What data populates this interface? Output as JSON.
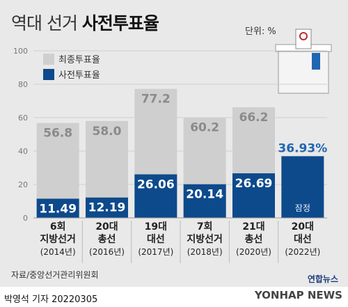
{
  "header": {
    "title_light": "역대 선거",
    "title_bold": "사전투표율",
    "unit": "단위: %"
  },
  "source": "자료/중앙선거관리위원회",
  "byline": "박영석 기자  20220305",
  "logo": {
    "brand": "YONHAP NEWS",
    "small": "연합뉴스"
  },
  "colors": {
    "total_bar": "#cfcfcf",
    "early_bar": "#0d4a8c",
    "highlight_label": "#1f66b3",
    "background": "#e9e9e9"
  },
  "chart_data": {
    "type": "bar",
    "title": "역대 선거 사전투표율",
    "ylabel": "",
    "ylim": [
      0,
      100
    ],
    "yticks": [
      0,
      20,
      40,
      60,
      80,
      100
    ],
    "grid": true,
    "legend_position": "top-left",
    "categories": [
      [
        "6회",
        "지방선거",
        "(2014년)"
      ],
      [
        "20대",
        "총선",
        "(2016년)"
      ],
      [
        "19대",
        "대선",
        "(2017년)"
      ],
      [
        "7회",
        "지방선거",
        "(2018년)"
      ],
      [
        "21대",
        "총선",
        "(2020년)"
      ],
      [
        "20대",
        "대선",
        "(2022년)"
      ]
    ],
    "series": [
      {
        "name": "최종투표율",
        "values": [
          56.8,
          58.0,
          77.2,
          60.2,
          66.2,
          null
        ],
        "labels": [
          "56.8",
          "58.0",
          "77.2",
          "60.2",
          "66.2",
          ""
        ]
      },
      {
        "name": "사전투표율",
        "values": [
          11.49,
          12.19,
          26.06,
          20.14,
          26.69,
          36.93
        ],
        "labels": [
          "11.49",
          "12.19",
          "26.06",
          "20.14",
          "26.69",
          "36.93%"
        ]
      }
    ],
    "annotations": [
      {
        "category_index": 5,
        "text": "잠정"
      }
    ]
  }
}
